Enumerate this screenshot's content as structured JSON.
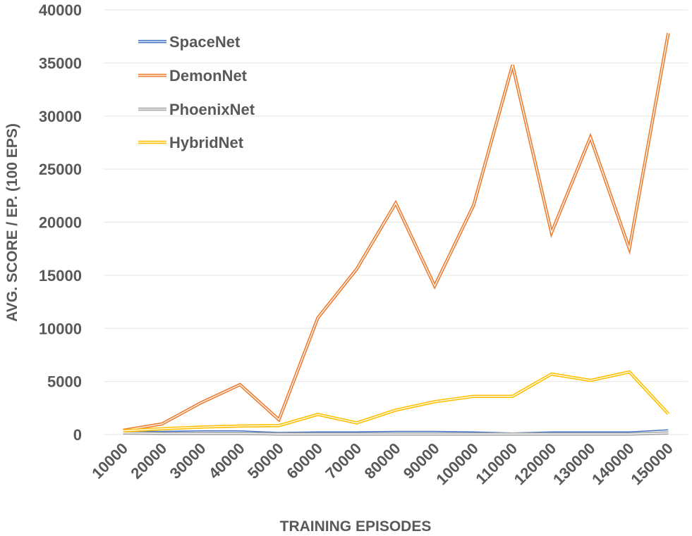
{
  "chart_data": {
    "type": "line",
    "xlabel": "TRAINING EPISODES",
    "ylabel": "AVG. SCORE / EP. (100 EPS)",
    "ylim": [
      0,
      40000
    ],
    "yticks": [
      "0",
      "5000",
      "10000",
      "15000",
      "20000",
      "25000",
      "30000",
      "35000",
      "40000"
    ],
    "categories": [
      "10000",
      "20000",
      "30000",
      "40000",
      "50000",
      "60000",
      "70000",
      "80000",
      "90000",
      "100000",
      "110000",
      "120000",
      "130000",
      "140000",
      "150000"
    ],
    "grid": true,
    "legend_position": "top-left",
    "series": [
      {
        "name": "SpaceNet",
        "color": "#4472C4",
        "values": [
          200,
          200,
          250,
          250,
          100,
          150,
          150,
          200,
          200,
          150,
          50,
          150,
          150,
          150,
          350
        ]
      },
      {
        "name": "DemonNet",
        "color": "#ED7D31",
        "values": [
          400,
          1000,
          3000,
          4700,
          1400,
          11000,
          15600,
          21800,
          14000,
          21600,
          34800,
          19000,
          28000,
          17500,
          37800
        ]
      },
      {
        "name": "PhoenixNet",
        "color": "#A5A5A5",
        "values": [
          150,
          100,
          100,
          100,
          50,
          50,
          50,
          50,
          50,
          50,
          50,
          50,
          50,
          50,
          150
        ]
      },
      {
        "name": "HybridNet",
        "color": "#FFC000",
        "values": [
          350,
          550,
          700,
          800,
          850,
          1900,
          1100,
          2300,
          3100,
          3600,
          3600,
          5700,
          5100,
          5900,
          1950
        ]
      }
    ]
  }
}
